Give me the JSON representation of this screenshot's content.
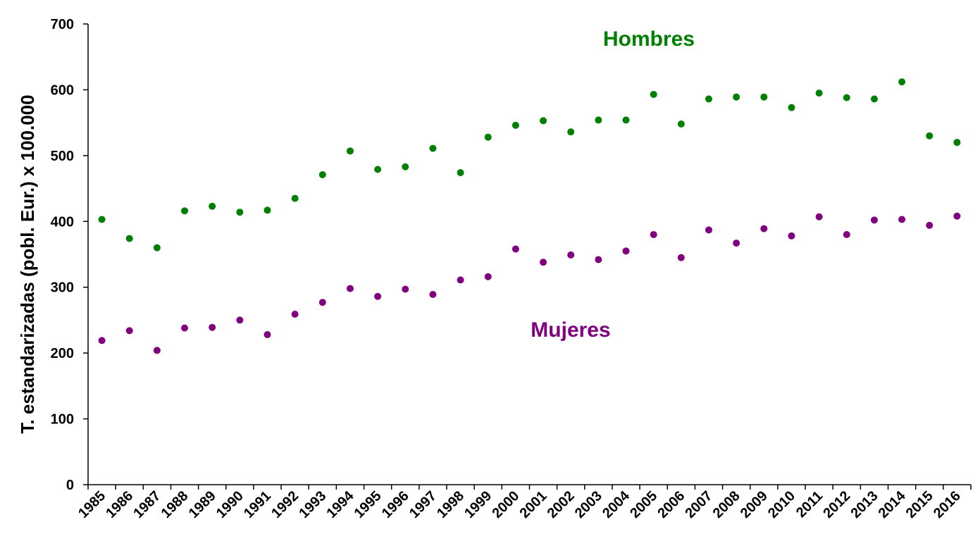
{
  "chart_data": {
    "type": "scatter",
    "title": "",
    "xlabel": "",
    "ylabel": "T. estandarizadas (pobl. Eur.) x 100.000",
    "ylim": [
      0,
      700
    ],
    "yticks": [
      0,
      100,
      200,
      300,
      400,
      500,
      600,
      700
    ],
    "grid": false,
    "legend": "none",
    "categories": [
      "1985",
      "1986",
      "1987",
      "1988",
      "1989",
      "1990",
      "1991",
      "1992",
      "1993",
      "1994",
      "1995",
      "1996",
      "1997",
      "1998",
      "1999",
      "2000",
      "2001",
      "2002",
      "2003",
      "2004",
      "2005",
      "2006",
      "2007",
      "2008",
      "2009",
      "2010",
      "2011",
      "2012",
      "2013",
      "2014",
      "2015",
      "2016"
    ],
    "series": [
      {
        "name": "Hombres",
        "color": "#008000",
        "values": [
          403,
          374,
          360,
          416,
          423,
          414,
          417,
          435,
          471,
          507,
          479,
          483,
          511,
          474,
          528,
          546,
          553,
          536,
          554,
          554,
          593,
          548,
          586,
          589,
          589,
          573,
          595,
          588,
          586,
          612,
          530,
          520
        ]
      },
      {
        "name": "Mujeres",
        "color": "#800080",
        "values": [
          219,
          234,
          204,
          238,
          239,
          250,
          228,
          259,
          277,
          298,
          286,
          297,
          289,
          311,
          316,
          358,
          338,
          349,
          342,
          355,
          380,
          345,
          387,
          367,
          389,
          378,
          407,
          380,
          402,
          403,
          394,
          408
        ]
      }
    ]
  }
}
